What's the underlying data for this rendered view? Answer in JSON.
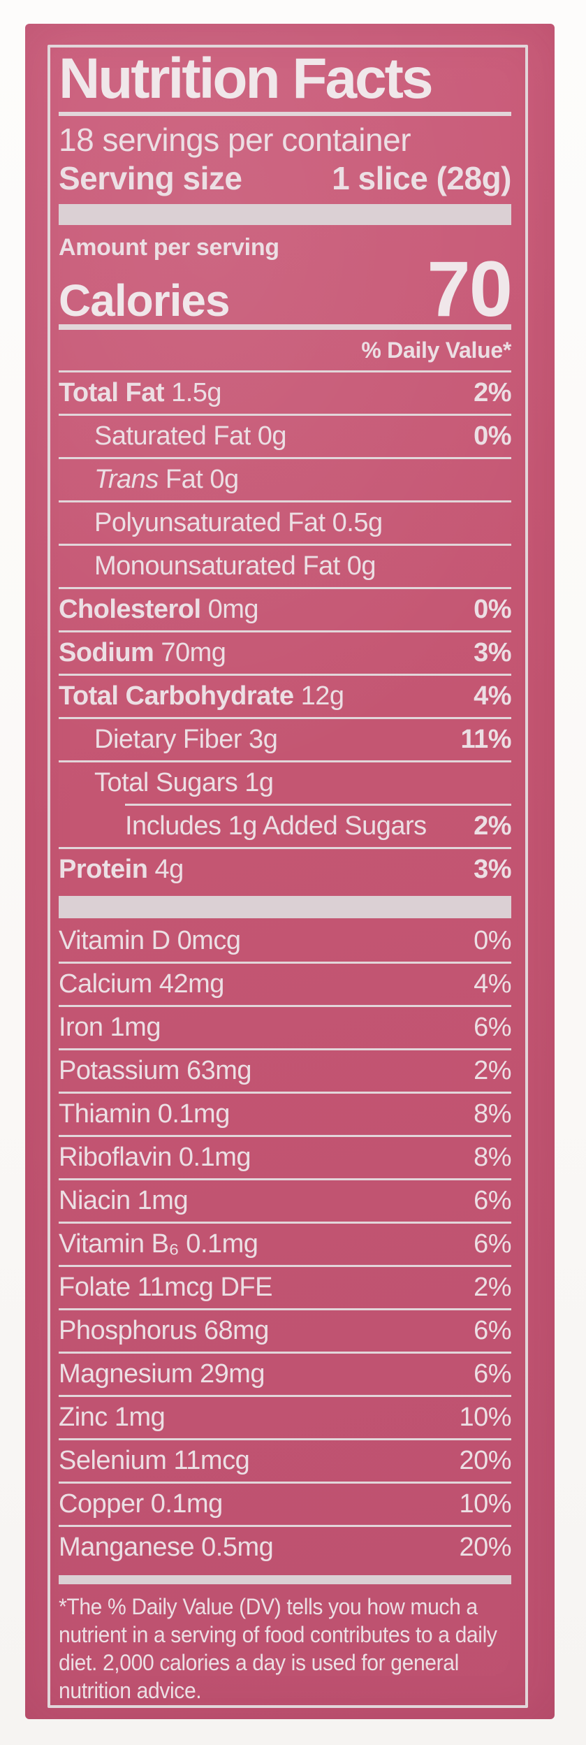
{
  "label": {
    "title": "Nutrition Facts",
    "servings_per_container": "18 servings per container",
    "serving_size_label": "Serving size",
    "serving_size_value": "1 slice (28g)",
    "amount_per_serving": "Amount per serving",
    "calories_label": "Calories",
    "calories_value": "70",
    "daily_value_header": "% Daily Value*",
    "footnote": "*The % Daily Value (DV) tells you how much a\nnutrient in a serving of food contributes to a daily\ndiet. 2,000 calories a day is used for general\nnutrition advice."
  },
  "nutrients": [
    {
      "bold": "Total Fat",
      "italic": "",
      "text": " 1.5g",
      "dv": "2%",
      "indent": 0
    },
    {
      "bold": "",
      "italic": "",
      "text": "Saturated Fat 0g",
      "dv": "0%",
      "indent": 1
    },
    {
      "bold": "",
      "italic": "Trans",
      "text": " Fat 0g",
      "dv": "",
      "indent": 1
    },
    {
      "bold": "",
      "italic": "",
      "text": "Polyunsaturated Fat 0.5g",
      "dv": "",
      "indent": 1
    },
    {
      "bold": "",
      "italic": "",
      "text": "Monounsaturated Fat 0g",
      "dv": "",
      "indent": 1
    },
    {
      "bold": "Cholesterol",
      "italic": "",
      "text": " 0mg",
      "dv": "0%",
      "indent": 0
    },
    {
      "bold": "Sodium",
      "italic": "",
      "text": " 70mg",
      "dv": "3%",
      "indent": 0
    },
    {
      "bold": "Total Carbohydrate",
      "italic": "",
      "text": " 12g",
      "dv": "4%",
      "indent": 0
    },
    {
      "bold": "",
      "italic": "",
      "text": "Dietary Fiber 3g",
      "dv": "11%",
      "indent": 1
    },
    {
      "bold": "",
      "italic": "",
      "text": "Total Sugars 1g",
      "dv": "",
      "indent": 1
    },
    {
      "bold": "",
      "italic": "",
      "text": "Includes 1g Added Sugars",
      "dv": "2%",
      "indent": 2,
      "rule_indent": true
    },
    {
      "bold": "Protein",
      "italic": "",
      "text": " 4g",
      "dv": "3%",
      "indent": 0
    }
  ],
  "vitamins": [
    {
      "text": "Vitamin D 0mcg",
      "dv": "0%"
    },
    {
      "text": "Calcium 42mg",
      "dv": "4%"
    },
    {
      "text": "Iron 1mg",
      "dv": "6%"
    },
    {
      "text": "Potassium 63mg",
      "dv": "2%"
    },
    {
      "text": "Thiamin 0.1mg",
      "dv": "8%"
    },
    {
      "text": "Riboflavin 0.1mg",
      "dv": "8%"
    },
    {
      "text": "Niacin 1mg",
      "dv": "6%"
    },
    {
      "text": "Vitamin B₆ 0.1mg",
      "dv": "6%"
    },
    {
      "text": "Folate 11mcg DFE",
      "dv": "2%"
    },
    {
      "text": "Phosphorus 68mg",
      "dv": "6%"
    },
    {
      "text": "Magnesium 29mg",
      "dv": "6%"
    },
    {
      "text": "Zinc 1mg",
      "dv": "10%"
    },
    {
      "text": "Selenium 11mcg",
      "dv": "20%"
    },
    {
      "text": "Copper 0.1mg",
      "dv": "10%"
    },
    {
      "text": "Manganese 0.5mg",
      "dv": "20%"
    }
  ],
  "colors": {
    "label_pink": "#c45672",
    "text_offwhite": "#ecdfe4",
    "rule_offwhite": "#e2d6da",
    "bar_offwhite": "#dbd0d4",
    "page_background": "#fbfaf8"
  }
}
